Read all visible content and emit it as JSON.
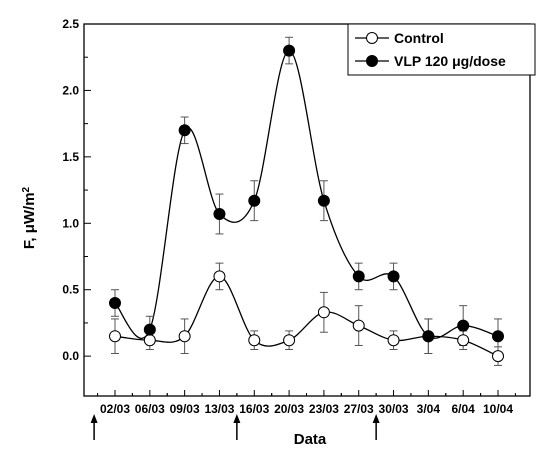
{
  "chart_data": {
    "type": "line",
    "xlabel": "Data",
    "ylabel": "F, μW/m²",
    "ylabel_main": "F, μW/m",
    "ylabel_sup": "2",
    "categories": [
      "02/03",
      "06/03",
      "09/03",
      "13/03",
      "16/03",
      "20/03",
      "23/03",
      "27/03",
      "30/03",
      "3/04",
      "6/04",
      "10/04"
    ],
    "ylim": [
      -0.3,
      2.5
    ],
    "yticks": [
      0.0,
      0.5,
      1.0,
      1.5,
      2.0,
      2.5
    ],
    "ytick_labels": [
      "0.0",
      "0.5",
      "1.0",
      "1.5",
      "2.0",
      "2.5"
    ],
    "grid": false,
    "legend_position": "top-right",
    "series": [
      {
        "name": "Control",
        "marker": "open-circle",
        "values": [
          0.15,
          0.12,
          0.15,
          0.6,
          0.12,
          0.12,
          0.33,
          0.23,
          0.12,
          0.15,
          0.12,
          0.0
        ],
        "errors": [
          0.13,
          0.07,
          0.13,
          0.1,
          0.07,
          0.07,
          0.15,
          0.15,
          0.07,
          0.13,
          0.07,
          0.07
        ]
      },
      {
        "name": "VLP 120 μg/dose",
        "marker": "filled-circle",
        "values": [
          0.4,
          0.2,
          1.7,
          1.07,
          1.17,
          2.3,
          1.17,
          0.6,
          0.6,
          0.15,
          0.23,
          0.15
        ],
        "errors": [
          0.1,
          0.1,
          0.1,
          0.15,
          0.15,
          0.1,
          0.15,
          0.1,
          0.1,
          0.13,
          0.15,
          0.13
        ]
      }
    ],
    "arrow_markers": [
      {
        "after_category": "02/03",
        "fraction": -0.6
      },
      {
        "after_category": "13/03",
        "fraction": 0.5
      },
      {
        "after_category": "27/03",
        "fraction": 0.5
      }
    ]
  }
}
